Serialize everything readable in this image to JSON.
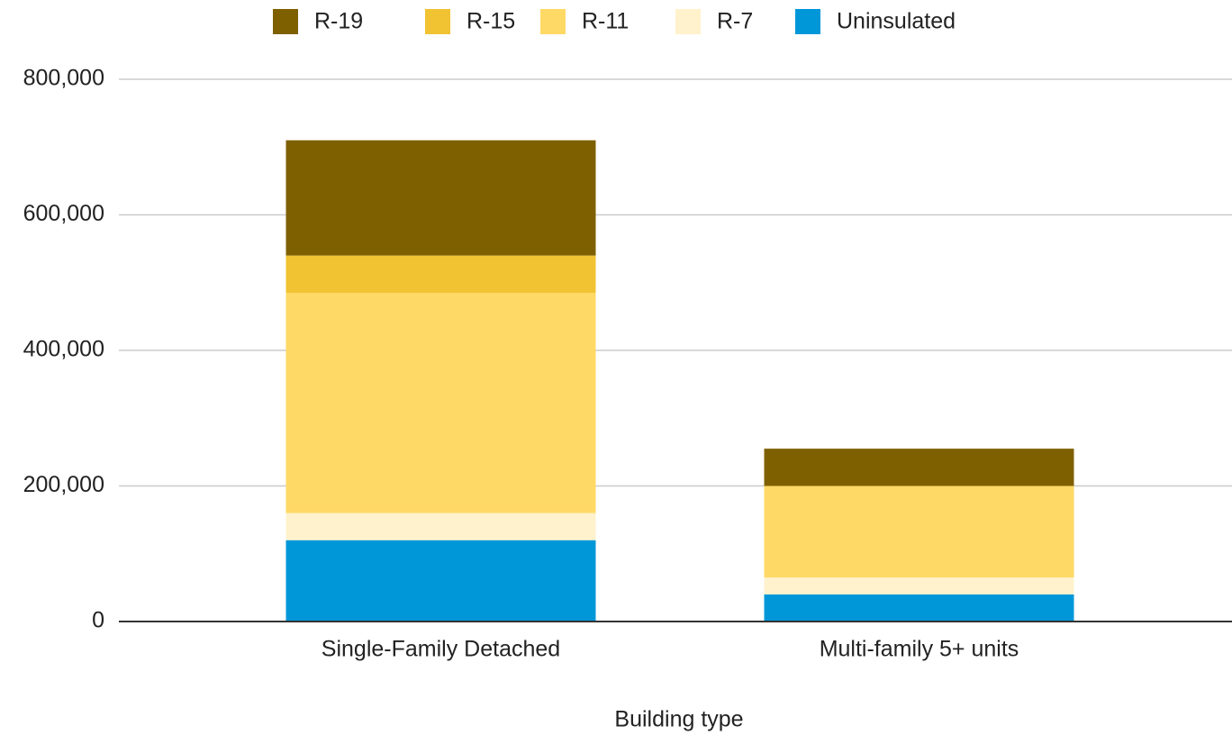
{
  "chart_data": {
    "type": "stacked_bar",
    "x_label": "Building type",
    "categories": [
      "Single-Family Detached",
      "Multi-family 5+ units"
    ],
    "series": [
      {
        "name": "R-19",
        "color": "#7f6000",
        "values": [
          170000,
          55000
        ]
      },
      {
        "name": "R-15",
        "color": "#f1c232",
        "values": [
          55000,
          0
        ]
      },
      {
        "name": "R-11",
        "color": "#ffd966",
        "values": [
          325000,
          135000
        ]
      },
      {
        "name": "R-7",
        "color": "#fff2cc",
        "values": [
          40000,
          25000
        ]
      },
      {
        "name": "Uninsulated",
        "color": "#0097d9",
        "values": [
          120000,
          40000
        ]
      }
    ],
    "ylim": [
      0,
      800000
    ],
    "yticks": [
      0,
      {
        "value": 200000,
        "label": "200,000"
      },
      {
        "value": 400000,
        "label": "400,000"
      },
      {
        "value": 600000,
        "label": "600,000"
      },
      {
        "value": 800000,
        "label": "800,000"
      }
    ],
    "grid": true,
    "legend": "top"
  }
}
